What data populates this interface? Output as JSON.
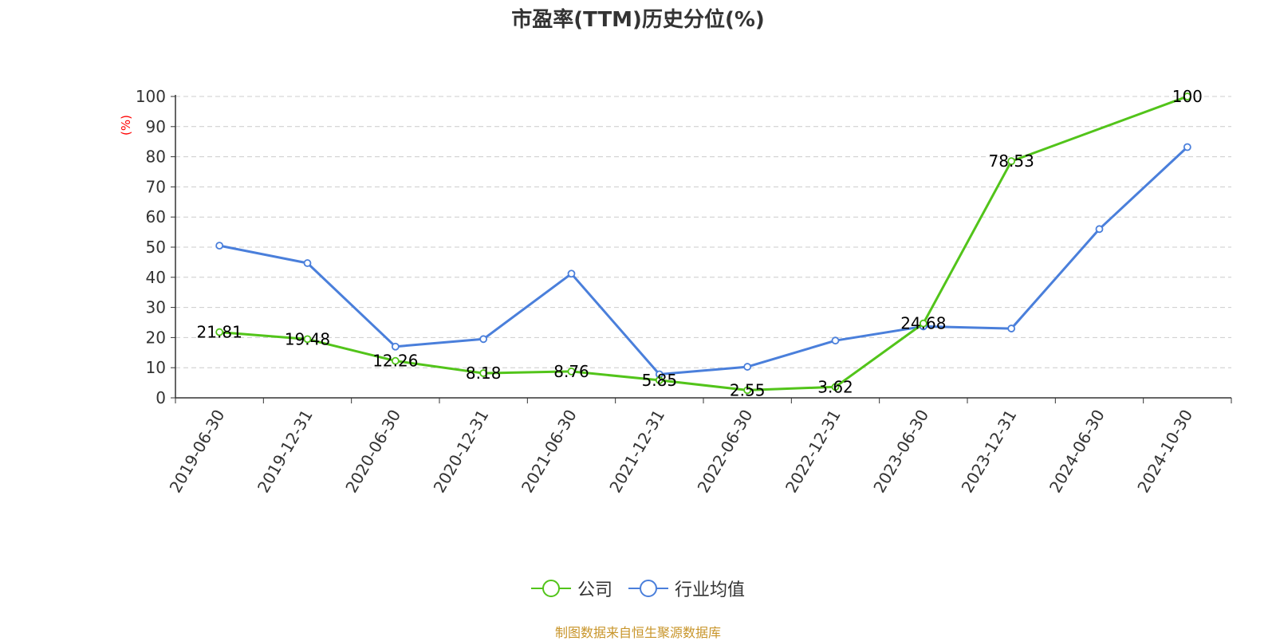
{
  "chart_data": {
    "type": "line",
    "title": "市盈率(TTM)历史分位(%)",
    "ylabel": "(%)",
    "ylim": [
      0,
      100
    ],
    "yticks": [
      0,
      10,
      20,
      30,
      40,
      50,
      60,
      70,
      80,
      90,
      100
    ],
    "grid": true,
    "legend_position": "bottom",
    "categories": [
      "2019-06-30",
      "2019-12-31",
      "2020-06-30",
      "2020-12-31",
      "2021-06-30",
      "2021-12-31",
      "2022-06-30",
      "2022-12-31",
      "2023-06-30",
      "2023-12-31",
      "2024-06-30",
      "2024-10-30"
    ],
    "series": [
      {
        "name": "公司",
        "color": "#52c41a",
        "values": [
          21.81,
          19.48,
          12.26,
          8.18,
          8.76,
          5.85,
          2.55,
          3.62,
          24.68,
          78.53,
          null,
          100
        ],
        "labels": [
          "21.81",
          "19.48",
          "12.26",
          "8.18",
          "8.76",
          "5.85",
          "2.55",
          "3.62",
          "24.68",
          "78.53",
          "",
          "100"
        ]
      },
      {
        "name": "行业均值",
        "color": "#4a7fdb",
        "values": [
          50.5,
          44.7,
          17.0,
          19.5,
          41.2,
          7.8,
          10.3,
          19.0,
          23.7,
          23.0,
          56.0,
          83.2
        ]
      }
    ]
  },
  "colors": {
    "axis": "#333333",
    "grid": "#cccccc",
    "unit_label": "#ff0000",
    "source": "#c8952a"
  },
  "source_text": "制图数据来自恒生聚源数据库"
}
